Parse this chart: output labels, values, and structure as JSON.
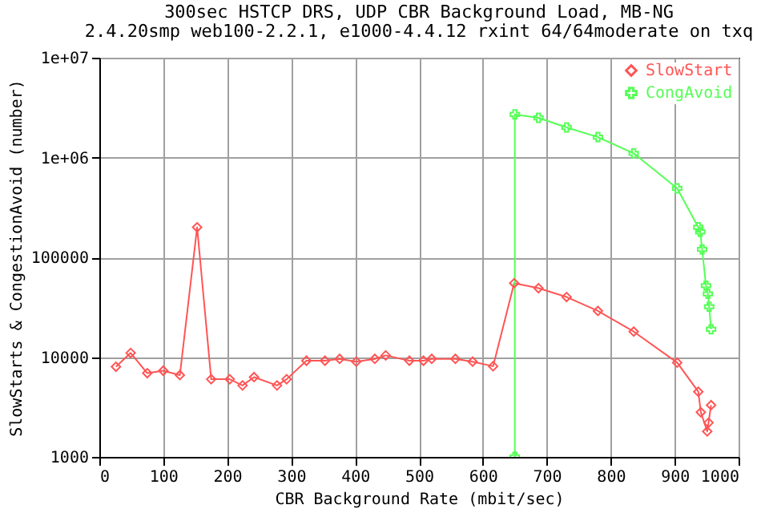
{
  "chart_data": {
    "type": "line",
    "title": "300sec HSTCP DRS, UDP CBR Background Load, MB-NG",
    "subtitle": "2.4.20smp web100-2.2.1, e1000-4.4.12 rxint 64/64moderate on txq",
    "xlabel": "CBR Background Rate (mbit/sec)",
    "ylabel": "SlowStarts & CongestionAvoid (number)",
    "xlim": [
      0,
      1000
    ],
    "xticks": [
      0,
      100,
      200,
      300,
      400,
      500,
      600,
      700,
      800,
      900,
      1000
    ],
    "ylim": [
      1000,
      10000000
    ],
    "yticks": [
      1000,
      10000,
      100000,
      {
        "value": 1000000,
        "label": "1e+06"
      },
      {
        "value": 10000000,
        "label": "1e+07"
      }
    ],
    "log": "y",
    "grid": true,
    "legend": "top right",
    "series": [
      {
        "name": "SlowStart",
        "color": "#ff5555",
        "marker": "diamond",
        "x": [
          26,
          49,
          75,
          100,
          126,
          153,
          175,
          204,
          224,
          242,
          278,
          293,
          324,
          353,
          376,
          402,
          431,
          448,
          485,
          507,
          520,
          557,
          584,
          616,
          649,
          687,
          731,
          780,
          836,
          904,
          937,
          941,
          951,
          953,
          957
        ],
        "values": [
          8000,
          11000,
          6900,
          7300,
          6600,
          200000,
          6000,
          6000,
          5200,
          6300,
          5200,
          6000,
          9200,
          9200,
          9600,
          9000,
          9600,
          10400,
          9200,
          9200,
          9600,
          9600,
          9000,
          8100,
          55000,
          49000,
          40000,
          29000,
          18000,
          8800,
          4500,
          2800,
          1800,
          2200,
          3300
        ]
      },
      {
        "name": "CongAvoid",
        "color": "#55ff55",
        "marker": "cross",
        "x": [
          650,
          650,
          687,
          731,
          780,
          836,
          904,
          937,
          940,
          943,
          949,
          952,
          954,
          957
        ],
        "values": [
          1000,
          2700000,
          2500000,
          2000000,
          1600000,
          1100000,
          490000,
          200000,
          180000,
          120000,
          52000,
          43000,
          32000,
          19000
        ]
      }
    ]
  }
}
